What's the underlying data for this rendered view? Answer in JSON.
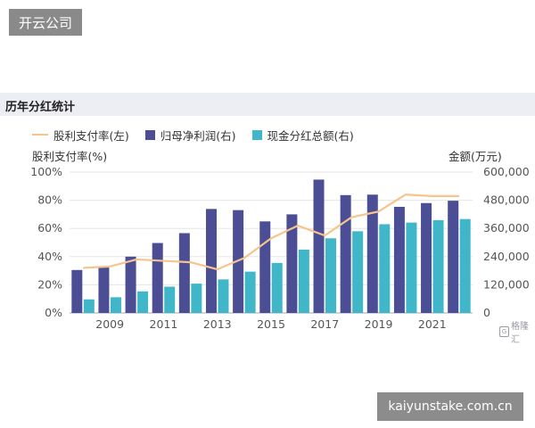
{
  "logo": {
    "text": "开云公司"
  },
  "section": {
    "title": "历年分红统计"
  },
  "watermark": {
    "text": "kaiyunstake.com.cn"
  },
  "source": {
    "glyph": "G",
    "text": "格隆汇"
  },
  "colors": {
    "line": "#f6c48d",
    "bar1": "#4b4e94",
    "bar2": "#40b6c9",
    "grid": "#e6e6e6",
    "axis": "#555555"
  },
  "chart_data": {
    "type": "bar",
    "x": [
      2008,
      2009,
      2010,
      2011,
      2012,
      2013,
      2014,
      2015,
      2016,
      2017,
      2018,
      2019,
      2020,
      2021,
      2022
    ],
    "xticks": [
      "2009",
      "2011",
      "2013",
      "2015",
      "2017",
      "2019",
      "2021"
    ],
    "legend": [
      "股利支付率(左)",
      "归母净利润(右)",
      "现金分红总额(右)"
    ],
    "left_axis": {
      "title": "股利支付率(%)",
      "ticks": [
        "0%",
        "20%",
        "40%",
        "60%",
        "80%",
        "100%"
      ],
      "range": [
        0,
        100
      ]
    },
    "right_axis": {
      "title": "金额(万元)",
      "ticks": [
        "0",
        "120,000",
        "240,000",
        "360,000",
        "480,000",
        "600,000"
      ],
      "range": [
        0,
        600000
      ]
    },
    "series": [
      {
        "name": "归母净利润(右)",
        "kind": "bar",
        "axis": "right",
        "values": [
          183000,
          198000,
          240000,
          298000,
          340000,
          443000,
          438000,
          390000,
          420000,
          568000,
          502000,
          504000,
          452000,
          468000,
          478000
        ]
      },
      {
        "name": "现金分红总额(右)",
        "kind": "bar",
        "axis": "right",
        "values": [
          58000,
          67000,
          92000,
          112000,
          125000,
          143000,
          176000,
          213000,
          270000,
          318000,
          348000,
          378000,
          385000,
          395000,
          400000
        ]
      },
      {
        "name": "股利支付率(左)",
        "kind": "line",
        "axis": "left",
        "values": [
          32,
          33,
          38,
          37,
          36,
          31,
          39,
          53,
          62,
          55,
          68,
          72,
          84,
          83,
          83
        ]
      }
    ]
  }
}
